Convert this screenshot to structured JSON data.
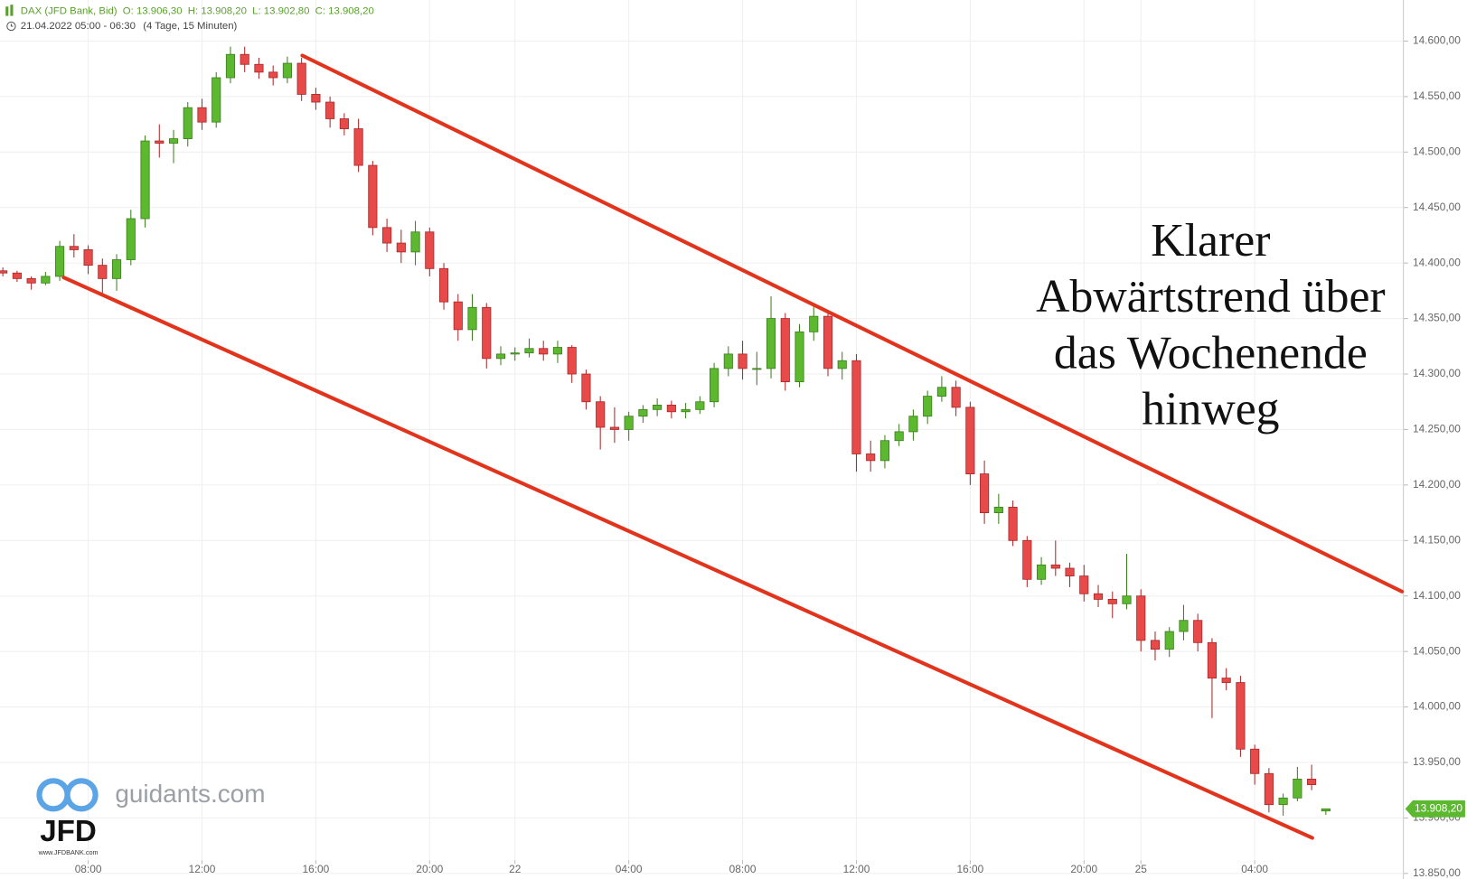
{
  "chart_data": {
    "type": "candlestick",
    "title": "DAX (JFD Bank, Bid)",
    "ohlc_header": {
      "open": "O: 13.906,30",
      "high": "H: 13.908,20",
      "low": "L: 13.902,80",
      "close": "C: 13.908,20"
    },
    "subtitle": "21.04.2022 05:00 - 06:30",
    "subtitle_period": "(4 Tage, 15 Minuten)",
    "annotation": [
      "Klarer",
      "Abwärtstrend über",
      "das Wochenende",
      "hinweg"
    ],
    "watermark": {
      "site": "guidants.com",
      "brand": "JFD",
      "url": "www.JFDBANK.com"
    },
    "last_price": {
      "value": 13908.2,
      "label": "13.908,20"
    },
    "up_color": "#5cb82f",
    "down_color": "#e84a4a",
    "trendline_color": "#e2341d",
    "grid": true,
    "xlim": [
      -0.4,
      196.9
    ],
    "ylim": [
      13845,
      14637
    ],
    "xticks": [
      {
        "value": 12,
        "label": "08:00"
      },
      {
        "value": 28,
        "label": "12:00"
      },
      {
        "value": 44,
        "label": "16:00"
      },
      {
        "value": 60,
        "label": "20:00"
      },
      {
        "value": 72,
        "label": "22"
      },
      {
        "value": 88,
        "label": "04:00"
      },
      {
        "value": 104,
        "label": "08:00"
      },
      {
        "value": 120,
        "label": "12:00"
      },
      {
        "value": 136,
        "label": "16:00"
      },
      {
        "value": 152,
        "label": "20:00"
      },
      {
        "value": 160,
        "label": "25"
      },
      {
        "value": 176,
        "label": "04:00"
      }
    ],
    "yticks": [
      {
        "value": 13850,
        "label": "13.850,00"
      },
      {
        "value": 13900,
        "label": "13.900,00"
      },
      {
        "value": 13950,
        "label": "13.950,00"
      },
      {
        "value": 14000,
        "label": "14.000,00"
      },
      {
        "value": 14050,
        "label": "14.050,00"
      },
      {
        "value": 14100,
        "label": "14.100,00"
      },
      {
        "value": 14150,
        "label": "14.150,00"
      },
      {
        "value": 14200,
        "label": "14.200,00"
      },
      {
        "value": 14250,
        "label": "14.250,00"
      },
      {
        "value": 14300,
        "label": "14.300,00"
      },
      {
        "value": 14350,
        "label": "14.350,00"
      },
      {
        "value": 14400,
        "label": "14.400,00"
      },
      {
        "value": 14450,
        "label": "14.450,00"
      },
      {
        "value": 14500,
        "label": "14.500,00"
      },
      {
        "value": 14550,
        "label": "14.550,00"
      },
      {
        "value": 14600,
        "label": "14.600,00"
      }
    ],
    "trendlines": [
      {
        "x": [
          42.1,
          196.7
        ],
        "y": [
          14587,
          14104
        ]
      },
      {
        "x": [
          8.55,
          184.1
        ],
        "y": [
          14387,
          13882
        ]
      }
    ],
    "x": [
      0,
      2,
      4,
      6,
      8,
      10,
      12,
      14,
      16,
      18,
      20,
      22,
      24,
      26,
      28,
      30,
      32,
      34,
      36,
      38,
      40,
      42,
      44,
      46,
      48,
      50,
      52,
      54,
      56,
      58,
      60,
      62,
      64,
      66,
      68,
      70,
      72,
      74,
      76,
      78,
      80,
      82,
      84,
      86,
      88,
      90,
      92,
      94,
      96,
      98,
      100,
      102,
      104,
      106,
      108,
      110,
      112,
      114,
      116,
      118,
      120,
      122,
      124,
      126,
      128,
      130,
      132,
      134,
      136,
      138,
      140,
      142,
      144,
      146,
      148,
      150,
      152,
      154,
      156,
      158,
      160,
      162,
      164,
      166,
      168,
      170,
      172,
      174,
      176,
      178,
      180,
      182,
      184,
      186
    ],
    "ohlc": [
      [
        14393,
        14396,
        14388,
        14391
      ],
      [
        14391,
        14393,
        14383,
        14386
      ],
      [
        14386,
        14388,
        14376,
        14382
      ],
      [
        14382,
        14392,
        14380,
        14388
      ],
      [
        14388,
        14420,
        14384,
        14415
      ],
      [
        14415,
        14426,
        14405,
        14412
      ],
      [
        14412,
        14416,
        14390,
        14398
      ],
      [
        14398,
        14404,
        14371,
        14386
      ],
      [
        14386,
        14408,
        14375,
        14403
      ],
      [
        14403,
        14448,
        14398,
        14440
      ],
      [
        14440,
        14515,
        14432,
        14510
      ],
      [
        14510,
        14525,
        14495,
        14508
      ],
      [
        14508,
        14520,
        14490,
        14512
      ],
      [
        14512,
        14545,
        14505,
        14540
      ],
      [
        14540,
        14548,
        14520,
        14527
      ],
      [
        14527,
        14572,
        14522,
        14567
      ],
      [
        14567,
        14595,
        14562,
        14588
      ],
      [
        14588,
        14595,
        14572,
        14579
      ],
      [
        14579,
        14585,
        14566,
        14572
      ],
      [
        14572,
        14578,
        14560,
        14567
      ],
      [
        14567,
        14586,
        14562,
        14580
      ],
      [
        14580,
        14585,
        14546,
        14552
      ],
      [
        14552,
        14558,
        14538,
        14545
      ],
      [
        14545,
        14550,
        14522,
        14530
      ],
      [
        14530,
        14535,
        14515,
        14521
      ],
      [
        14521,
        14530,
        14482,
        14488
      ],
      [
        14488,
        14492,
        14425,
        14432
      ],
      [
        14432,
        14440,
        14410,
        14418
      ],
      [
        14418,
        14430,
        14400,
        14410
      ],
      [
        14410,
        14438,
        14398,
        14428
      ],
      [
        14428,
        14432,
        14388,
        14395
      ],
      [
        14395,
        14400,
        14358,
        14365
      ],
      [
        14365,
        14372,
        14330,
        14340
      ],
      [
        14340,
        14372,
        14330,
        14360
      ],
      [
        14360,
        14364,
        14305,
        14314
      ],
      [
        14314,
        14325,
        14308,
        14318
      ],
      [
        14318,
        14324,
        14312,
        14319
      ],
      [
        14319,
        14332,
        14315,
        14323
      ],
      [
        14323,
        14330,
        14312,
        14318
      ],
      [
        14318,
        14330,
        14310,
        14324
      ],
      [
        14324,
        14326,
        14292,
        14300
      ],
      [
        14300,
        14304,
        14268,
        14275
      ],
      [
        14275,
        14280,
        14232,
        14252
      ],
      [
        14252,
        14270,
        14238,
        14250
      ],
      [
        14250,
        14266,
        14240,
        14262
      ],
      [
        14262,
        14272,
        14256,
        14268
      ],
      [
        14268,
        14278,
        14262,
        14272
      ],
      [
        14272,
        14276,
        14260,
        14266
      ],
      [
        14266,
        14274,
        14260,
        14268
      ],
      [
        14268,
        14280,
        14264,
        14275
      ],
      [
        14275,
        14310,
        14270,
        14305
      ],
      [
        14305,
        14325,
        14298,
        14318
      ],
      [
        14318,
        14330,
        14295,
        14305
      ],
      [
        14305,
        14320,
        14290,
        14305
      ],
      [
        14305,
        14370,
        14296,
        14350
      ],
      [
        14350,
        14355,
        14285,
        14293
      ],
      [
        14293,
        14345,
        14288,
        14338
      ],
      [
        14338,
        14362,
        14330,
        14352
      ],
      [
        14352,
        14356,
        14298,
        14305
      ],
      [
        14305,
        14320,
        14295,
        14312
      ],
      [
        14312,
        14318,
        14212,
        14228
      ],
      [
        14228,
        14240,
        14212,
        14222
      ],
      [
        14222,
        14245,
        14215,
        14240
      ],
      [
        14240,
        14255,
        14235,
        14248
      ],
      [
        14248,
        14268,
        14240,
        14262
      ],
      [
        14262,
        14285,
        14255,
        14280
      ],
      [
        14280,
        14298,
        14275,
        14288
      ],
      [
        14288,
        14294,
        14262,
        14270
      ],
      [
        14270,
        14275,
        14200,
        14210
      ],
      [
        14210,
        14222,
        14165,
        14175
      ],
      [
        14175,
        14192,
        14165,
        14180
      ],
      [
        14180,
        14186,
        14145,
        14150
      ],
      [
        14150,
        14154,
        14108,
        14115
      ],
      [
        14115,
        14135,
        14110,
        14128
      ],
      [
        14128,
        14150,
        14118,
        14125
      ],
      [
        14125,
        14130,
        14108,
        14118
      ],
      [
        14118,
        14128,
        14095,
        14102
      ],
      [
        14102,
        14110,
        14090,
        14097
      ],
      [
        14097,
        14104,
        14080,
        14093
      ],
      [
        14093,
        14138,
        14088,
        14100
      ],
      [
        14100,
        14106,
        14050,
        14060
      ],
      [
        14060,
        14068,
        14042,
        14052
      ],
      [
        14052,
        14072,
        14045,
        14068
      ],
      [
        14068,
        14092,
        14060,
        14078
      ],
      [
        14078,
        14084,
        14050,
        14058
      ],
      [
        14058,
        14062,
        13990,
        14026
      ],
      [
        14026,
        14035,
        14015,
        14022
      ],
      [
        14022,
        14028,
        13955,
        13962
      ],
      [
        13962,
        13966,
        13930,
        13940
      ],
      [
        13940,
        13945,
        13905,
        13912
      ],
      [
        13912,
        13922,
        13902,
        13918
      ],
      [
        13918,
        13946,
        13915,
        13935
      ],
      [
        13935,
        13948,
        13925,
        13930
      ],
      [
        13906.3,
        13908.2,
        13902.8,
        13908.2
      ]
    ]
  }
}
